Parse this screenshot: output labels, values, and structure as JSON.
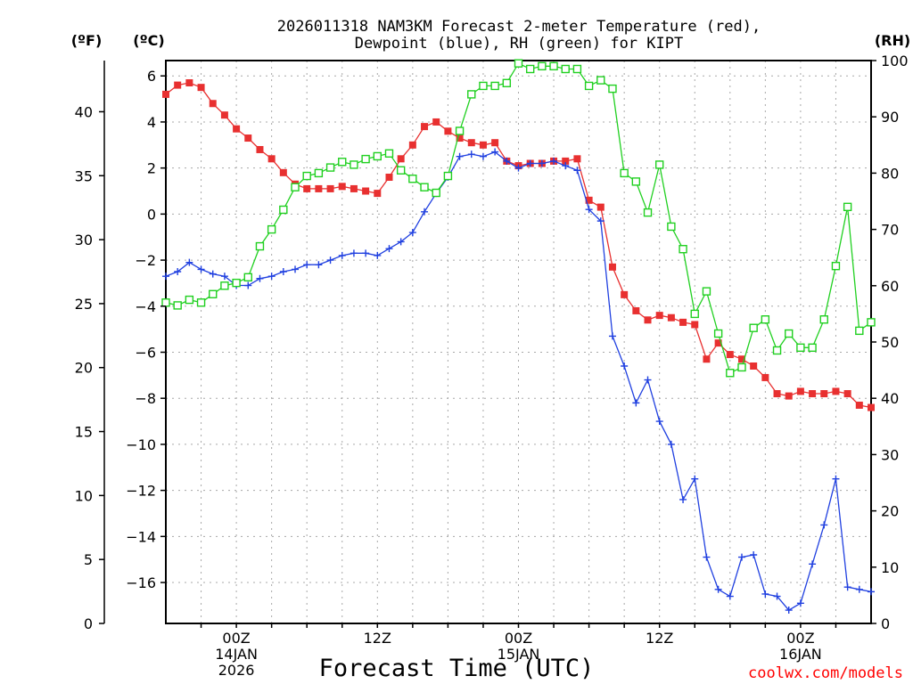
{
  "chart_data": {
    "type": "line",
    "title_line1": "2026011318 NAM3KM Forecast 2-meter Temperature (red),",
    "title_line2": "Dewpoint (blue), RH (green) for KIPT",
    "xlabel": "Forecast Time (UTC)",
    "credit": "coolwx.com/models",
    "unit_left_outer": "(ºF)",
    "unit_left_inner": "(ºC)",
    "unit_right": "(RH)",
    "xlim_hours": [
      0,
      60
    ],
    "ylim_c": [
      -17.7778,
      6.6667
    ],
    "ylim_f": [
      0,
      44
    ],
    "ylim_rh": [
      0,
      100
    ],
    "yticks_c": [
      6,
      4,
      2,
      0,
      -2,
      -4,
      -6,
      -8,
      -10,
      -12,
      -14,
      -16
    ],
    "ytick_labels_c": [
      "6",
      "4",
      "2",
      "0",
      "−2",
      "−4",
      "−6",
      "−8",
      "−10",
      "−12",
      "−14",
      "−16"
    ],
    "yticks_f": [
      0,
      5,
      10,
      15,
      20,
      25,
      30,
      35,
      40
    ],
    "ytick_labels_f": [
      "0",
      "5",
      "10",
      "15",
      "20",
      "25",
      "30",
      "35",
      "40"
    ],
    "yticks_rh": [
      0,
      10,
      20,
      30,
      40,
      50,
      60,
      70,
      80,
      90,
      100
    ],
    "ytick_labels_rh": [
      "0",
      "10",
      "20",
      "30",
      "40",
      "50",
      "60",
      "70",
      "80",
      "90",
      "100"
    ],
    "xticks": [
      {
        "hour": 6,
        "lines": [
          "00Z",
          "14JAN",
          "2026"
        ]
      },
      {
        "hour": 18,
        "lines": [
          "12Z"
        ]
      },
      {
        "hour": 30,
        "lines": [
          "00Z",
          "15JAN"
        ]
      },
      {
        "hour": 42,
        "lines": [
          "12Z"
        ]
      },
      {
        "hour": 54,
        "lines": [
          "00Z",
          "16JAN"
        ]
      }
    ],
    "hours": [
      0,
      1,
      2,
      3,
      4,
      5,
      6,
      7,
      8,
      9,
      10,
      11,
      12,
      13,
      14,
      15,
      16,
      17,
      18,
      19,
      20,
      21,
      22,
      23,
      24,
      25,
      26,
      27,
      28,
      29,
      30,
      31,
      32,
      33,
      34,
      35,
      36,
      37,
      38,
      39,
      40,
      41,
      42,
      43,
      44,
      45,
      46,
      47,
      48,
      49,
      50,
      51,
      52,
      53,
      54,
      55,
      56,
      57,
      58,
      59,
      60
    ],
    "series": [
      {
        "name": "2-meter Temperature",
        "color": "#e83030",
        "axis": "c",
        "marker": "filled-square",
        "values": [
          5.2,
          5.6,
          5.7,
          5.5,
          4.8,
          4.3,
          3.7,
          3.3,
          2.8,
          2.4,
          1.8,
          1.3,
          1.1,
          1.1,
          1.1,
          1.2,
          1.1,
          1.0,
          0.9,
          1.6,
          2.4,
          3.0,
          3.8,
          4.0,
          3.6,
          3.3,
          3.1,
          3.0,
          3.1,
          2.3,
          2.1,
          2.2,
          2.2,
          2.3,
          2.3,
          2.4,
          0.6,
          0.3,
          -2.3,
          -3.5,
          -4.2,
          -4.6,
          -4.4,
          -4.5,
          -4.7,
          -4.8,
          -6.3,
          -5.6,
          -6.1,
          -6.3,
          -6.6,
          -7.1,
          -7.8,
          -7.9,
          -7.7,
          -7.8,
          -7.8,
          -7.7,
          -7.8,
          -8.3,
          -8.4
        ]
      },
      {
        "name": "Dewpoint",
        "color": "#2040e0",
        "axis": "c",
        "marker": "plus",
        "values": [
          -2.7,
          -2.5,
          -2.1,
          -2.4,
          -2.6,
          -2.7,
          -3.1,
          -3.1,
          -2.8,
          -2.7,
          -2.5,
          -2.4,
          -2.2,
          -2.2,
          -2.0,
          -1.8,
          -1.7,
          -1.7,
          -1.8,
          -1.5,
          -1.2,
          -0.8,
          0.1,
          0.9,
          1.6,
          2.5,
          2.6,
          2.5,
          2.7,
          2.3,
          2.0,
          2.2,
          2.2,
          2.3,
          2.1,
          1.9,
          0.2,
          -0.3,
          -5.3,
          -6.6,
          -8.2,
          -7.2,
          -9.0,
          -10.0,
          -12.4,
          -11.5,
          -14.9,
          -16.3,
          -16.6,
          -14.9,
          -14.8,
          -16.5,
          -16.6,
          -17.2,
          -16.9,
          -15.2,
          -13.5,
          -11.5,
          -16.2,
          -16.3,
          -16.4
        ]
      },
      {
        "name": "RH",
        "color": "#20d020",
        "axis": "rh",
        "marker": "open-square",
        "values": [
          57,
          56.5,
          57.5,
          57,
          58.5,
          60,
          60.5,
          61.5,
          67,
          70,
          73.5,
          77.5,
          79.5,
          80,
          81,
          82,
          81.5,
          82.5,
          83,
          83.5,
          80.5,
          79,
          77.5,
          76.5,
          79.5,
          87.5,
          94,
          95.5,
          95.5,
          96,
          99.5,
          98.5,
          99,
          99,
          98.5,
          98.5,
          95.5,
          96.5,
          95,
          80,
          78.5,
          73,
          81.5,
          70.5,
          66.5,
          55,
          59,
          51.5,
          44.5,
          45.5,
          52.5,
          54,
          48.5,
          51.5,
          49,
          49,
          54,
          63.5,
          74,
          52,
          53.5
        ]
      }
    ]
  }
}
